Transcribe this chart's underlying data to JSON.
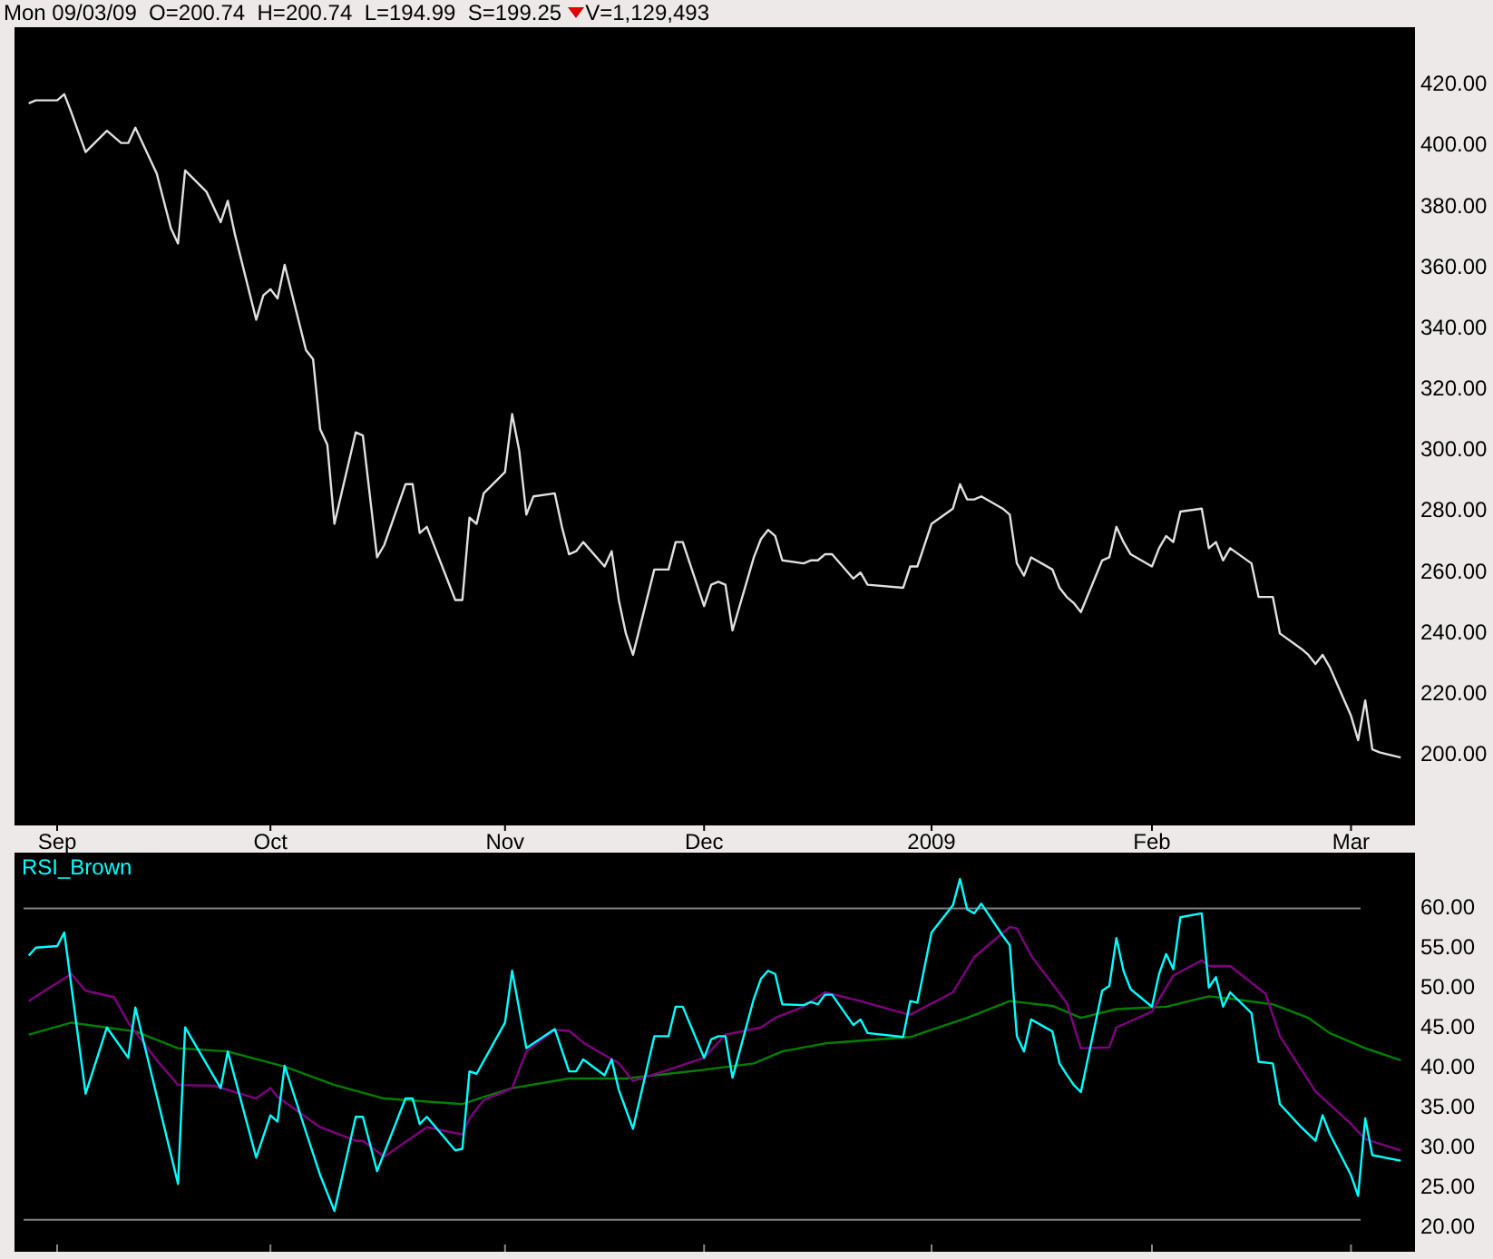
{
  "chart_data": [
    {
      "type": "line",
      "annotations": [
        "Mon 09/03/09  O=200.74  H=200.74  L=194.99  S=199.25",
        "V=1,129,493"
      ],
      "xlim": [
        "2008-08-26",
        "2009-03-11"
      ],
      "xticks": [
        {
          "value": "2008-09-01",
          "label": "Sep"
        },
        {
          "value": "2008-10-01",
          "label": "Oct"
        },
        {
          "value": "2008-11-03",
          "label": "Nov"
        },
        {
          "value": "2008-12-01",
          "label": "Dec"
        },
        {
          "value": "2009-01-02",
          "label": "2009"
        },
        {
          "value": "2009-02-02",
          "label": "Feb"
        },
        {
          "value": "2009-03-02",
          "label": "Mar"
        }
      ],
      "ylim": [
        177,
        439
      ],
      "yticks": [
        {
          "value": 200,
          "label": "200.00"
        },
        {
          "value": 220,
          "label": "220.00"
        },
        {
          "value": 240,
          "label": "240.00"
        },
        {
          "value": 260,
          "label": "260.00"
        },
        {
          "value": 280,
          "label": "280.00"
        },
        {
          "value": 300,
          "label": "300.00"
        },
        {
          "value": 320,
          "label": "320.00"
        },
        {
          "value": 340,
          "label": "340.00"
        },
        {
          "value": 360,
          "label": "360.00"
        },
        {
          "value": 380,
          "label": "380.00"
        },
        {
          "value": 400,
          "label": "400.00"
        },
        {
          "value": 420,
          "label": "420.00"
        }
      ],
      "series": [
        {
          "color": "#e0e0e0",
          "x": [
            "2008-08-28",
            "2008-08-29",
            "2008-09-01",
            "2008-09-02",
            "2008-09-03",
            "2008-09-05",
            "2008-09-08",
            "2008-09-10",
            "2008-09-11",
            "2008-09-12",
            "2008-09-15",
            "2008-09-17",
            "2008-09-18",
            "2008-09-19",
            "2008-09-22",
            "2008-09-24",
            "2008-09-25",
            "2008-09-26",
            "2008-09-29",
            "2008-09-30",
            "2008-10-01",
            "2008-10-02",
            "2008-10-03",
            "2008-10-06",
            "2008-10-07",
            "2008-10-08",
            "2008-10-09",
            "2008-10-10",
            "2008-10-13",
            "2008-10-14",
            "2008-10-16",
            "2008-10-17",
            "2008-10-20",
            "2008-10-21",
            "2008-10-22",
            "2008-10-23",
            "2008-10-27",
            "2008-10-28",
            "2008-10-29",
            "2008-10-30",
            "2008-10-31",
            "2008-11-03",
            "2008-11-04",
            "2008-11-05",
            "2008-11-06",
            "2008-11-07",
            "2008-11-10",
            "2008-11-11",
            "2008-11-12",
            "2008-11-13",
            "2008-11-14",
            "2008-11-17",
            "2008-11-18",
            "2008-11-19",
            "2008-11-20",
            "2008-11-21",
            "2008-11-24",
            "2008-11-26",
            "2008-11-27",
            "2008-11-28",
            "2008-12-01",
            "2008-12-02",
            "2008-12-03",
            "2008-12-04",
            "2008-12-05",
            "2008-12-08",
            "2008-12-09",
            "2008-12-10",
            "2008-12-11",
            "2008-12-12",
            "2008-12-15",
            "2008-12-16",
            "2008-12-17",
            "2008-12-18",
            "2008-12-19",
            "2008-12-22",
            "2008-12-23",
            "2008-12-24",
            "2008-12-29",
            "2008-12-30",
            "2008-12-31",
            "2009-01-02",
            "2009-01-05",
            "2009-01-06",
            "2009-01-07",
            "2009-01-08",
            "2009-01-09",
            "2009-01-12",
            "2009-01-13",
            "2009-01-14",
            "2009-01-15",
            "2009-01-16",
            "2009-01-19",
            "2009-01-20",
            "2009-01-21",
            "2009-01-22",
            "2009-01-23",
            "2009-01-26",
            "2009-01-27",
            "2009-01-28",
            "2009-01-29",
            "2009-01-30",
            "2009-02-02",
            "2009-02-03",
            "2009-02-04",
            "2009-02-05",
            "2009-02-06",
            "2009-02-09",
            "2009-02-10",
            "2009-02-11",
            "2009-02-12",
            "2009-02-13",
            "2009-02-16",
            "2009-02-17",
            "2009-02-18",
            "2009-02-19",
            "2009-02-20",
            "2009-02-23",
            "2009-02-24",
            "2009-02-25",
            "2009-02-26",
            "2009-02-27",
            "2009-03-02",
            "2009-03-03",
            "2009-03-04",
            "2009-03-05",
            "2009-03-06",
            "2009-03-09"
          ],
          "values": [
            414,
            415,
            415,
            417,
            411,
            398,
            405,
            401,
            401,
            406,
            391,
            373,
            368,
            392,
            385,
            375,
            382,
            371,
            343,
            351,
            353,
            350,
            361,
            333,
            330,
            307,
            302,
            276,
            306,
            305,
            265,
            269,
            289,
            289,
            273,
            275,
            251,
            251,
            278,
            276,
            286,
            293,
            312,
            300,
            279,
            285,
            286,
            275,
            266,
            267,
            270,
            262,
            267,
            251,
            240,
            233,
            261,
            261,
            270,
            270,
            249,
            256,
            257,
            256,
            241,
            265,
            271,
            274,
            272,
            264,
            263,
            264,
            264,
            266,
            266,
            258,
            260,
            256,
            255,
            262,
            262,
            276,
            281,
            289,
            284,
            284,
            285,
            281,
            279,
            263,
            259,
            265,
            261,
            255,
            252,
            250,
            247,
            264,
            265,
            275,
            270,
            266,
            262,
            268,
            272,
            270,
            280,
            281,
            268,
            270,
            264,
            268,
            263,
            252,
            252,
            252,
            240,
            235,
            233,
            230,
            233,
            229,
            213,
            205,
            218,
            202,
            201,
            199.3
          ]
        }
      ]
    },
    {
      "type": "line",
      "tick_labels": "y",
      "xlim": [
        "2008-08-26",
        "2009-03-11"
      ],
      "xticks": [
        {
          "value": "2008-09-01",
          "label": null
        },
        {
          "value": "2008-10-01",
          "label": null
        },
        {
          "value": "2008-11-03",
          "label": null
        },
        {
          "value": "2008-12-01",
          "label": null
        },
        {
          "value": "2009-01-02",
          "label": null
        },
        {
          "value": "2009-02-02",
          "label": null
        },
        {
          "value": "2009-03-02",
          "label": null
        }
      ],
      "ylim": [
        17,
        67
      ],
      "yticks": [
        {
          "value": 20,
          "label": "20.00"
        },
        {
          "value": 25,
          "label": "25.00"
        },
        {
          "value": 30,
          "label": "30.00"
        },
        {
          "value": 35,
          "label": "35.00"
        },
        {
          "value": 40,
          "label": "40.00"
        },
        {
          "value": 45,
          "label": "45.00"
        },
        {
          "value": 50,
          "label": "50.00"
        },
        {
          "value": 55,
          "label": "55.00"
        },
        {
          "value": 60,
          "label": "60.00"
        }
      ],
      "ref_lines": [
        {
          "axis": "y",
          "value": 60,
          "color": "#808080"
        },
        {
          "axis": "y",
          "value": 21,
          "color": "#808080"
        }
      ],
      "series": [
        {
          "color": "#008000",
          "x": [
            "2008-08-28",
            "2008-09-03",
            "2008-09-12",
            "2008-09-18",
            "2008-09-25",
            "2008-10-03",
            "2008-10-10",
            "2008-10-17",
            "2008-10-28",
            "2008-10-31",
            "2008-11-04",
            "2008-11-12",
            "2008-11-20",
            "2008-12-01",
            "2008-12-08",
            "2008-12-12",
            "2008-12-18",
            "2008-12-30",
            "2009-01-07",
            "2009-01-13",
            "2009-01-19",
            "2009-01-23",
            "2009-01-28",
            "2009-02-04",
            "2009-02-10",
            "2009-02-13",
            "2009-02-19",
            "2009-02-24",
            "2009-02-27",
            "2009-03-04",
            "2009-03-09"
          ],
          "values": [
            44.2,
            45.7,
            44.6,
            42.5,
            42.1,
            40.2,
            37.9,
            36.2,
            35.5,
            36.4,
            37.5,
            38.7,
            38.7,
            39.8,
            40.6,
            42.1,
            43.1,
            43.9,
            46.3,
            48.4,
            47.8,
            46.3,
            47.4,
            47.7,
            49,
            48.7,
            48,
            46.3,
            44.4,
            42.5,
            41
          ]
        },
        {
          "color": "#800080",
          "x": [
            "2008-08-28",
            "2008-08-29",
            "2008-09-03",
            "2008-09-05",
            "2008-09-09",
            "2008-09-11",
            "2008-09-15",
            "2008-09-18",
            "2008-09-23",
            "2008-09-29",
            "2008-10-01",
            "2008-10-02",
            "2008-10-08",
            "2008-10-13",
            "2008-10-14",
            "2008-10-17",
            "2008-10-23",
            "2008-10-28",
            "2008-10-29",
            "2008-10-31",
            "2008-11-04",
            "2008-11-06",
            "2008-11-10",
            "2008-11-12",
            "2008-11-14",
            "2008-11-19",
            "2008-11-21",
            "2008-11-26",
            "2008-12-01",
            "2008-12-04",
            "2008-12-09",
            "2008-12-11",
            "2008-12-15",
            "2008-12-18",
            "2008-12-23",
            "2008-12-29",
            "2008-12-30",
            "2009-01-05",
            "2009-01-08",
            "2009-01-13",
            "2009-01-14",
            "2009-01-16",
            "2009-01-21",
            "2009-01-23",
            "2009-01-27",
            "2009-01-28",
            "2009-02-02",
            "2009-02-05",
            "2009-02-09",
            "2009-02-10",
            "2009-02-13",
            "2009-02-18",
            "2009-02-20",
            "2009-02-25",
            "2009-03-02",
            "2009-03-04",
            "2009-03-09"
          ],
          "values": [
            48.4,
            49,
            51.8,
            49.7,
            48.9,
            45.7,
            41,
            37.9,
            37.8,
            36.2,
            37.5,
            36.4,
            32.6,
            30.9,
            30.9,
            28.9,
            32.6,
            31.7,
            33.7,
            36,
            37.5,
            42.1,
            44.8,
            44.7,
            43.2,
            40.6,
            38.4,
            39.8,
            41.3,
            44.2,
            45.1,
            46.3,
            47.7,
            49.5,
            48.4,
            46.9,
            46.7,
            49.5,
            53.9,
            57.7,
            57.5,
            54.1,
            48.2,
            42.5,
            42.6,
            45.1,
            47.1,
            51.6,
            53.5,
            52.8,
            52.8,
            49.3,
            44,
            37.1,
            33,
            31.1,
            29.7
          ]
        },
        {
          "name": "RSI_Brown",
          "color": "#00ffff",
          "x": [
            "2008-08-28",
            "2008-08-29",
            "2008-09-01",
            "2008-09-02",
            "2008-09-05",
            "2008-09-08",
            "2008-09-11",
            "2008-09-12",
            "2008-09-18",
            "2008-09-19",
            "2008-09-24",
            "2008-09-25",
            "2008-09-29",
            "2008-10-01",
            "2008-10-02",
            "2008-10-03",
            "2008-10-06",
            "2008-10-08",
            "2008-10-10",
            "2008-10-13",
            "2008-10-14",
            "2008-10-16",
            "2008-10-20",
            "2008-10-21",
            "2008-10-22",
            "2008-10-23",
            "2008-10-27",
            "2008-10-28",
            "2008-10-29",
            "2008-10-30",
            "2008-11-03",
            "2008-11-04",
            "2008-11-06",
            "2008-11-10",
            "2008-11-12",
            "2008-11-13",
            "2008-11-14",
            "2008-11-17",
            "2008-11-18",
            "2008-11-19",
            "2008-11-21",
            "2008-11-24",
            "2008-11-26",
            "2008-11-27",
            "2008-11-28",
            "2008-12-01",
            "2008-12-02",
            "2008-12-03",
            "2008-12-04",
            "2008-12-05",
            "2008-12-08",
            "2008-12-09",
            "2008-12-10",
            "2008-12-11",
            "2008-12-12",
            "2008-12-15",
            "2008-12-16",
            "2008-12-17",
            "2008-12-18",
            "2008-12-19",
            "2008-12-22",
            "2008-12-23",
            "2008-12-24",
            "2008-12-29",
            "2008-12-30",
            "2008-12-31",
            "2009-01-02",
            "2009-01-05",
            "2009-01-06",
            "2009-01-07",
            "2009-01-08",
            "2009-01-09",
            "2009-01-12",
            "2009-01-13",
            "2009-01-14",
            "2009-01-15",
            "2009-01-16",
            "2009-01-19",
            "2009-01-20",
            "2009-01-21",
            "2009-01-22",
            "2009-01-23",
            "2009-01-26",
            "2009-01-27",
            "2009-01-28",
            "2009-01-29",
            "2009-01-30",
            "2009-02-02",
            "2009-02-03",
            "2009-02-04",
            "2009-02-05",
            "2009-02-06",
            "2009-02-09",
            "2009-02-10",
            "2009-02-11",
            "2009-02-12",
            "2009-02-13",
            "2009-02-16",
            "2009-02-17",
            "2009-02-19",
            "2009-02-20",
            "2009-02-23",
            "2009-02-25",
            "2009-02-26",
            "2009-02-27",
            "2009-03-02",
            "2009-03-03",
            "2009-03-04",
            "2009-03-05",
            "2009-03-09"
          ],
          "values": [
            54.1,
            55.1,
            55.3,
            57,
            36.8,
            45.1,
            41.3,
            47.6,
            25.5,
            45.1,
            37.5,
            42.1,
            28.8,
            34.1,
            33.3,
            40.3,
            32,
            26.6,
            22.1,
            33.9,
            33.9,
            27.1,
            36.2,
            36.2,
            33,
            33.9,
            29.7,
            29.9,
            39.6,
            39.3,
            45.7,
            52.2,
            42.5,
            44.9,
            39.6,
            39.6,
            41.1,
            39.1,
            41.1,
            37.3,
            32.4,
            44,
            44,
            47.7,
            47.7,
            41.3,
            43.6,
            44,
            44,
            38.8,
            48.7,
            51.2,
            52.2,
            51.8,
            48,
            47.9,
            48.3,
            48,
            49.2,
            49.2,
            45.4,
            46.1,
            44.4,
            43.9,
            48.4,
            48.2,
            57,
            60.4,
            63.7,
            59.9,
            59.4,
            60.6,
            56.6,
            55.4,
            44,
            42.1,
            46.1,
            44.6,
            40.6,
            39.2,
            37.9,
            37,
            49.7,
            50.3,
            56.3,
            52.2,
            49.9,
            47.7,
            51.8,
            54.3,
            52.4,
            58.9,
            59.4,
            50.1,
            51.4,
            47.7,
            49.5,
            46.9,
            40.8,
            40.6,
            35.5,
            32.6,
            30.9,
            34.1,
            31.8,
            26.6,
            24,
            33.7,
            29.1,
            28.4
          ]
        }
      ]
    }
  ]
}
